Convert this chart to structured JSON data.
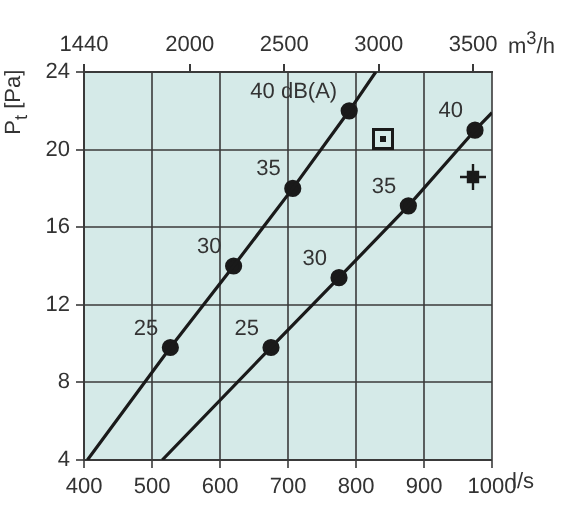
{
  "chart_data": {
    "type": "line",
    "ylabel": "P$_{t}$ [Pa]",
    "xlabel": "l/s",
    "x2label": "m$^{3}$/h",
    "xlim": [
      400,
      1000
    ],
    "xticks": [
      400,
      500,
      600,
      700,
      800,
      900,
      1000
    ],
    "x2lim": [
      1440,
      3600
    ],
    "x2ticks": [
      1440,
      2000,
      2500,
      3000,
      3500
    ],
    "ylim": [
      4,
      24
    ],
    "yticks": [
      4,
      8,
      12,
      16,
      20,
      24
    ],
    "series": [
      {
        "color": "#1a1a1a",
        "x": [
          405,
          527,
          620,
          707,
          790,
          829
        ],
        "values": [
          4,
          9.8,
          14,
          18,
          22,
          24
        ],
        "marker": "none"
      },
      {
        "color": "#1a1a1a",
        "x": [
          515,
          675,
          775,
          877,
          975,
          1000
        ],
        "values": [
          4,
          9.8,
          13.4,
          17.1,
          21,
          21.9
        ],
        "marker": "none"
      },
      {
        "type": "scatter",
        "color": "#1a1a1a",
        "x": [
          527,
          620,
          707,
          790
        ],
        "values": [
          9.8,
          14,
          18,
          22
        ]
      },
      {
        "type": "scatter",
        "color": "#1a1a1a",
        "x": [
          675,
          775,
          877,
          975
        ],
        "values": [
          9.8,
          13.4,
          17.1,
          21
        ]
      }
    ],
    "annotations": [
      {
        "text": "25",
        "x": 527,
        "y": 9.8
      },
      {
        "text": "30",
        "x": 620,
        "y": 14
      },
      {
        "text": "35",
        "x": 707,
        "y": 18
      },
      {
        "text": "40 dB(A)",
        "x": 790,
        "y": 22
      },
      {
        "text": "25",
        "x": 675,
        "y": 9.8
      },
      {
        "text": "30",
        "x": 775,
        "y": 13.4
      },
      {
        "text": "35",
        "x": 877,
        "y": 17.1
      },
      {
        "text": "40",
        "x": 975,
        "y": 21
      }
    ],
    "grid": true,
    "marker": "circle",
    "line_style": "solid",
    "legend": false
  }
}
